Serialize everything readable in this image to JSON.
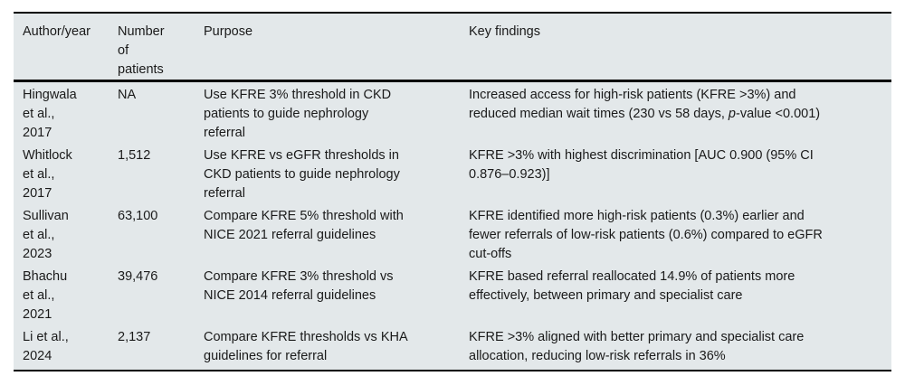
{
  "table": {
    "colors": {
      "page_bg": "#ffffff",
      "table_bg": "#e3e8ea",
      "rule": "#000000",
      "text": "#1a1a1a"
    },
    "columns": [
      {
        "key": "author",
        "label": "Author/year"
      },
      {
        "key": "patients",
        "label": "Number\nof\npatients"
      },
      {
        "key": "purpose",
        "label": "Purpose"
      },
      {
        "key": "findings",
        "label": "Key findings"
      }
    ],
    "rows": [
      {
        "author": "Hingwala\net al.,\n2017",
        "patients": "NA",
        "purpose": "Use KFRE 3% threshold in CKD\npatients to guide nephrology\nreferral",
        "findings": [
          {
            "text": "Increased access for high-risk patients (KFRE >3%) and\nreduced median wait times (230 vs 58 days, "
          },
          {
            "text": "p",
            "italic": true
          },
          {
            "text": "-value <0.001)"
          }
        ]
      },
      {
        "author": "Whitlock\net al.,\n2017",
        "patients": "1,512",
        "purpose": "Use KFRE vs eGFR thresholds in\nCKD patients to guide nephrology\nreferral",
        "findings": [
          {
            "text": "KFRE >3% with highest discrimination [AUC 0.900 (95% CI\n0.876–0.923)]"
          }
        ]
      },
      {
        "author": "Sullivan\net al.,\n2023",
        "patients": "63,100",
        "purpose": "Compare KFRE 5% threshold with\nNICE 2021 referral guidelines",
        "findings": [
          {
            "text": "KFRE identified more high-risk patients (0.3%) earlier and\nfewer referrals of low-risk patients (0.6%) compared to eGFR\ncut-offs"
          }
        ]
      },
      {
        "author": "Bhachu\net al.,\n2021",
        "patients": "39,476",
        "purpose": "Compare KFRE 3% threshold vs\nNICE 2014 referral guidelines",
        "findings": [
          {
            "text": "KFRE based referral reallocated 14.9% of patients more\neffectively, between primary and specialist care"
          }
        ]
      },
      {
        "author": "Li et al.,\n2024",
        "patients": "2,137",
        "purpose": "Compare KFRE thresholds vs KHA\nguidelines for referral",
        "findings": [
          {
            "text": "KFRE >3% aligned with better primary and specialist care\nallocation, reducing low-risk referrals in 36%"
          }
        ]
      }
    ]
  }
}
